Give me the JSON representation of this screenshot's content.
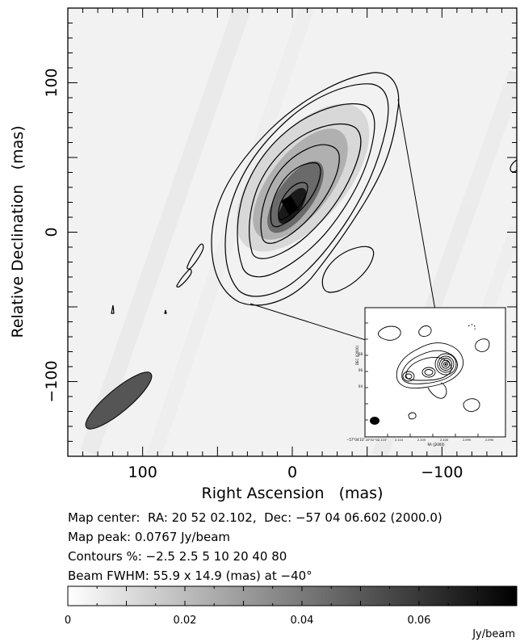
{
  "chart_data": {
    "type": "heatmap",
    "title": "",
    "xlabel": "Right Ascension   (mas)",
    "ylabel": "Relative Declination   (mas)",
    "xlim": [
      150,
      -150
    ],
    "ylim": [
      -150,
      150
    ],
    "x_ticks": [
      100,
      0,
      -100
    ],
    "y_ticks": [
      100,
      0,
      -100
    ],
    "x_tick_labels": [
      "100",
      "0",
      "−100"
    ],
    "y_tick_labels": [
      "100",
      "0",
      "−100"
    ],
    "grid": false,
    "info": [
      "Map center:  RA: 20 52 02.102,  Dec: −57 04 06.602 (2000.0)",
      "Map peak: 0.0767 Jy/beam",
      "Contours %: −2.5 2.5 5 10 20 40 80",
      "Beam FWHM: 55.9 x 14.9 (mas) at −40°"
    ],
    "map_peak_jy_per_beam": 0.0767,
    "contour_levels_percent": [
      -2.5,
      2.5,
      5,
      10,
      20,
      40,
      80
    ],
    "beam": {
      "major_mas": 55.9,
      "minor_mas": 14.9,
      "pa_deg": -40
    },
    "colorbar": {
      "min": 0,
      "max": 0.0767,
      "ticks": [
        0,
        0.02,
        0.04,
        0.06
      ],
      "tick_labels": [
        "0",
        "0.02",
        "0.04",
        "0.06"
      ],
      "unit": "Jy/beam"
    },
    "inset": {
      "ylabel": "DEC (J2000)",
      "xlabel": "RA (J2000)",
      "corner_label": "−57°04′10″",
      "x_tick_labels": [
        "20ʰ52ᵐ02.115ˢ",
        "2.110",
        "2.105",
        "2.100",
        "2.095",
        "2.090"
      ],
      "y_tick_labels": [
        "08",
        "06",
        "04"
      ]
    }
  }
}
